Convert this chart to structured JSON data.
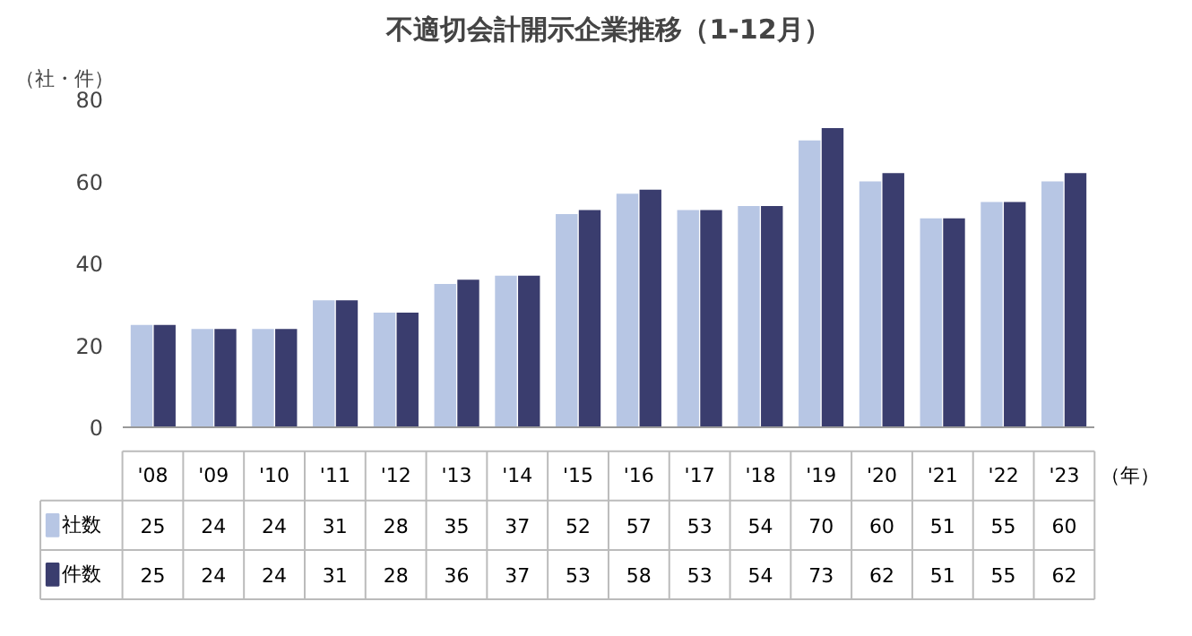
{
  "chart_data": {
    "type": "bar",
    "title": "不適切会計開示企業推移（1-12月）",
    "ylabel": "（社・件）",
    "xlabel": "（年）",
    "categories": [
      "'08",
      "'09",
      "'10",
      "'11",
      "'12",
      "'13",
      "'14",
      "'15",
      "'16",
      "'17",
      "'18",
      "'19",
      "'20",
      "'21",
      "'22",
      "'23"
    ],
    "series": [
      {
        "name": "社数",
        "color": "#b7c6e4",
        "values": [
          25,
          24,
          24,
          31,
          28,
          35,
          37,
          52,
          57,
          53,
          54,
          70,
          60,
          51,
          55,
          60
        ]
      },
      {
        "name": "件数",
        "color": "#3a3d6e",
        "values": [
          25,
          24,
          24,
          31,
          28,
          36,
          37,
          53,
          58,
          53,
          54,
          73,
          62,
          51,
          55,
          62
        ]
      }
    ],
    "ylim": [
      0,
      80
    ],
    "yticks": [
      0,
      20,
      40,
      60,
      80
    ],
    "grid": false,
    "legend": "bottom left",
    "data_labels": true
  }
}
